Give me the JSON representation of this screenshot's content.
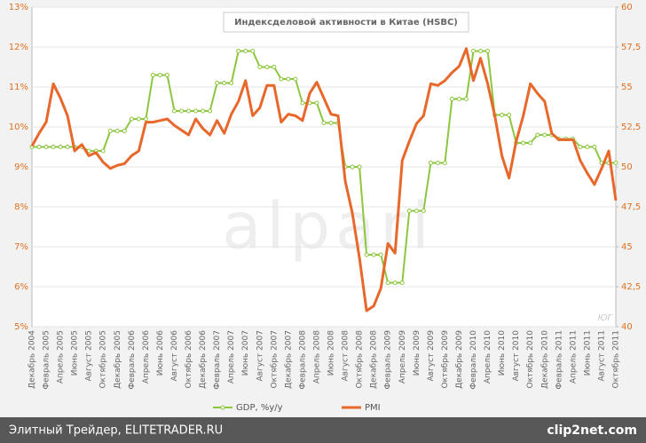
{
  "chart_data": {
    "type": "line",
    "title": "Индексделовой активности в Китае (HSBC)",
    "watermark": "alpari",
    "corner_mark": "ЮГ",
    "categories": [
      "Декабрь 2004",
      null,
      "Февраль 2005",
      null,
      "Апрель 2005",
      null,
      "Июнь 2005",
      null,
      "Август 2005",
      null,
      "Октябрь 2005",
      null,
      "Декабрь 2005",
      null,
      "Февраль 2006",
      null,
      "Апрель 2006",
      null,
      "Июнь 2006",
      null,
      "Август 2006",
      null,
      "Октябрь 2006",
      null,
      "Декабрь 2006",
      null,
      "Февраль 2007",
      null,
      "Апрель 2007",
      null,
      "Июнь 2007",
      null,
      "Август 2007",
      null,
      "Октябрь 2007",
      null,
      "Декабрь 2007",
      null,
      "Февраль 2008",
      null,
      "Апрель 2008",
      null,
      "Июнь 2008",
      null,
      "Август 2008",
      null,
      "Октябрь 2008",
      null,
      "Декабрь 2008",
      null,
      "Февраль 2009",
      null,
      "Апрель 2009",
      null,
      "Июнь 2009",
      null,
      "Август 2009",
      null,
      "Октябрь 2009",
      null,
      "Декабрь 2009",
      null,
      "Февраль 2010",
      null,
      "Апрель 2010",
      null,
      "Июнь 2010",
      null,
      "Август 2010",
      null,
      "Октябрь 2010",
      null,
      "Декабрь 2010",
      null,
      "Февраль 2011",
      null,
      "Апрель 2011",
      null,
      "Июнь 2011",
      null,
      "Август 2011",
      null,
      "Октябрь 2011"
    ],
    "series": [
      {
        "name": "GDP, %y/y",
        "color": "#8dc63f",
        "axis": "y",
        "markers": true,
        "values": [
          9.5,
          9.5,
          9.5,
          9.5,
          9.5,
          9.5,
          9.5,
          9.5,
          9.4,
          9.4,
          9.4,
          9.9,
          9.9,
          9.9,
          10.2,
          10.2,
          10.2,
          11.3,
          11.3,
          11.3,
          10.4,
          10.4,
          10.4,
          10.4,
          10.4,
          10.4,
          11.1,
          11.1,
          11.1,
          11.9,
          11.9,
          11.9,
          11.5,
          11.5,
          11.5,
          11.2,
          11.2,
          11.2,
          10.6,
          10.6,
          10.6,
          10.1,
          10.1,
          10.1,
          9.0,
          9.0,
          9.0,
          6.8,
          6.8,
          6.8,
          6.1,
          6.1,
          6.1,
          7.9,
          7.9,
          7.9,
          9.1,
          9.1,
          9.1,
          10.7,
          10.7,
          10.7,
          11.9,
          11.9,
          11.9,
          10.3,
          10.3,
          10.3,
          9.6,
          9.6,
          9.6,
          9.8,
          9.8,
          9.8,
          9.7,
          9.7,
          9.7,
          9.5,
          9.5,
          9.5,
          9.1,
          9.1,
          9.1
        ]
      },
      {
        "name": "PMI",
        "color": "#e8672a",
        "axis": "y2",
        "markers": false,
        "values": [
          51.3,
          52.1,
          52.8,
          55.2,
          54.3,
          53.2,
          51.0,
          51.4,
          50.7,
          50.9,
          50.3,
          49.9,
          50.1,
          50.2,
          50.7,
          51.0,
          52.8,
          52.8,
          52.9,
          53.0,
          52.6,
          52.3,
          52.0,
          53.0,
          52.4,
          52.0,
          52.9,
          52.1,
          53.3,
          54.1,
          55.4,
          53.2,
          53.7,
          55.1,
          55.1,
          52.8,
          53.3,
          53.2,
          52.9,
          54.6,
          55.3,
          54.3,
          53.3,
          53.2,
          49.1,
          47.1,
          44.3,
          41.0,
          41.3,
          42.4,
          45.2,
          44.6,
          50.4,
          51.6,
          52.7,
          53.2,
          55.2,
          55.1,
          55.4,
          55.9,
          56.3,
          57.4,
          55.4,
          56.8,
          55.2,
          53.2,
          50.7,
          49.3,
          51.6,
          53.2,
          55.2,
          54.6,
          54.1,
          52.1,
          51.7,
          51.7,
          51.7,
          50.4,
          49.6,
          48.9,
          49.9,
          51.0,
          47.9
        ]
      }
    ],
    "ylim": [
      5,
      13
    ],
    "yticks": [
      {
        "value": 5,
        "label": "5%"
      },
      {
        "value": 6,
        "label": "6%"
      },
      {
        "value": 7,
        "label": "7%"
      },
      {
        "value": 8,
        "label": "8%"
      },
      {
        "value": 9,
        "label": "9%"
      },
      {
        "value": 10,
        "label": "10%"
      },
      {
        "value": 11,
        "label": "11%"
      },
      {
        "value": 12,
        "label": "12%"
      },
      {
        "value": 13,
        "label": "13%"
      }
    ],
    "y2lim": [
      40,
      60
    ],
    "y2ticks": [
      40,
      {
        "value": 42.5,
        "label": "42,5"
      },
      45,
      {
        "value": 47.5,
        "label": "47,5"
      },
      50,
      {
        "value": 52.5,
        "label": "52,5"
      },
      55,
      {
        "value": 57.5,
        "label": "57,5"
      },
      60
    ],
    "grid": true,
    "legend": "bottom"
  },
  "footer": {
    "source": "Элитный Трейдер, ELITETRADER.RU",
    "brand": "clip2net.com"
  }
}
